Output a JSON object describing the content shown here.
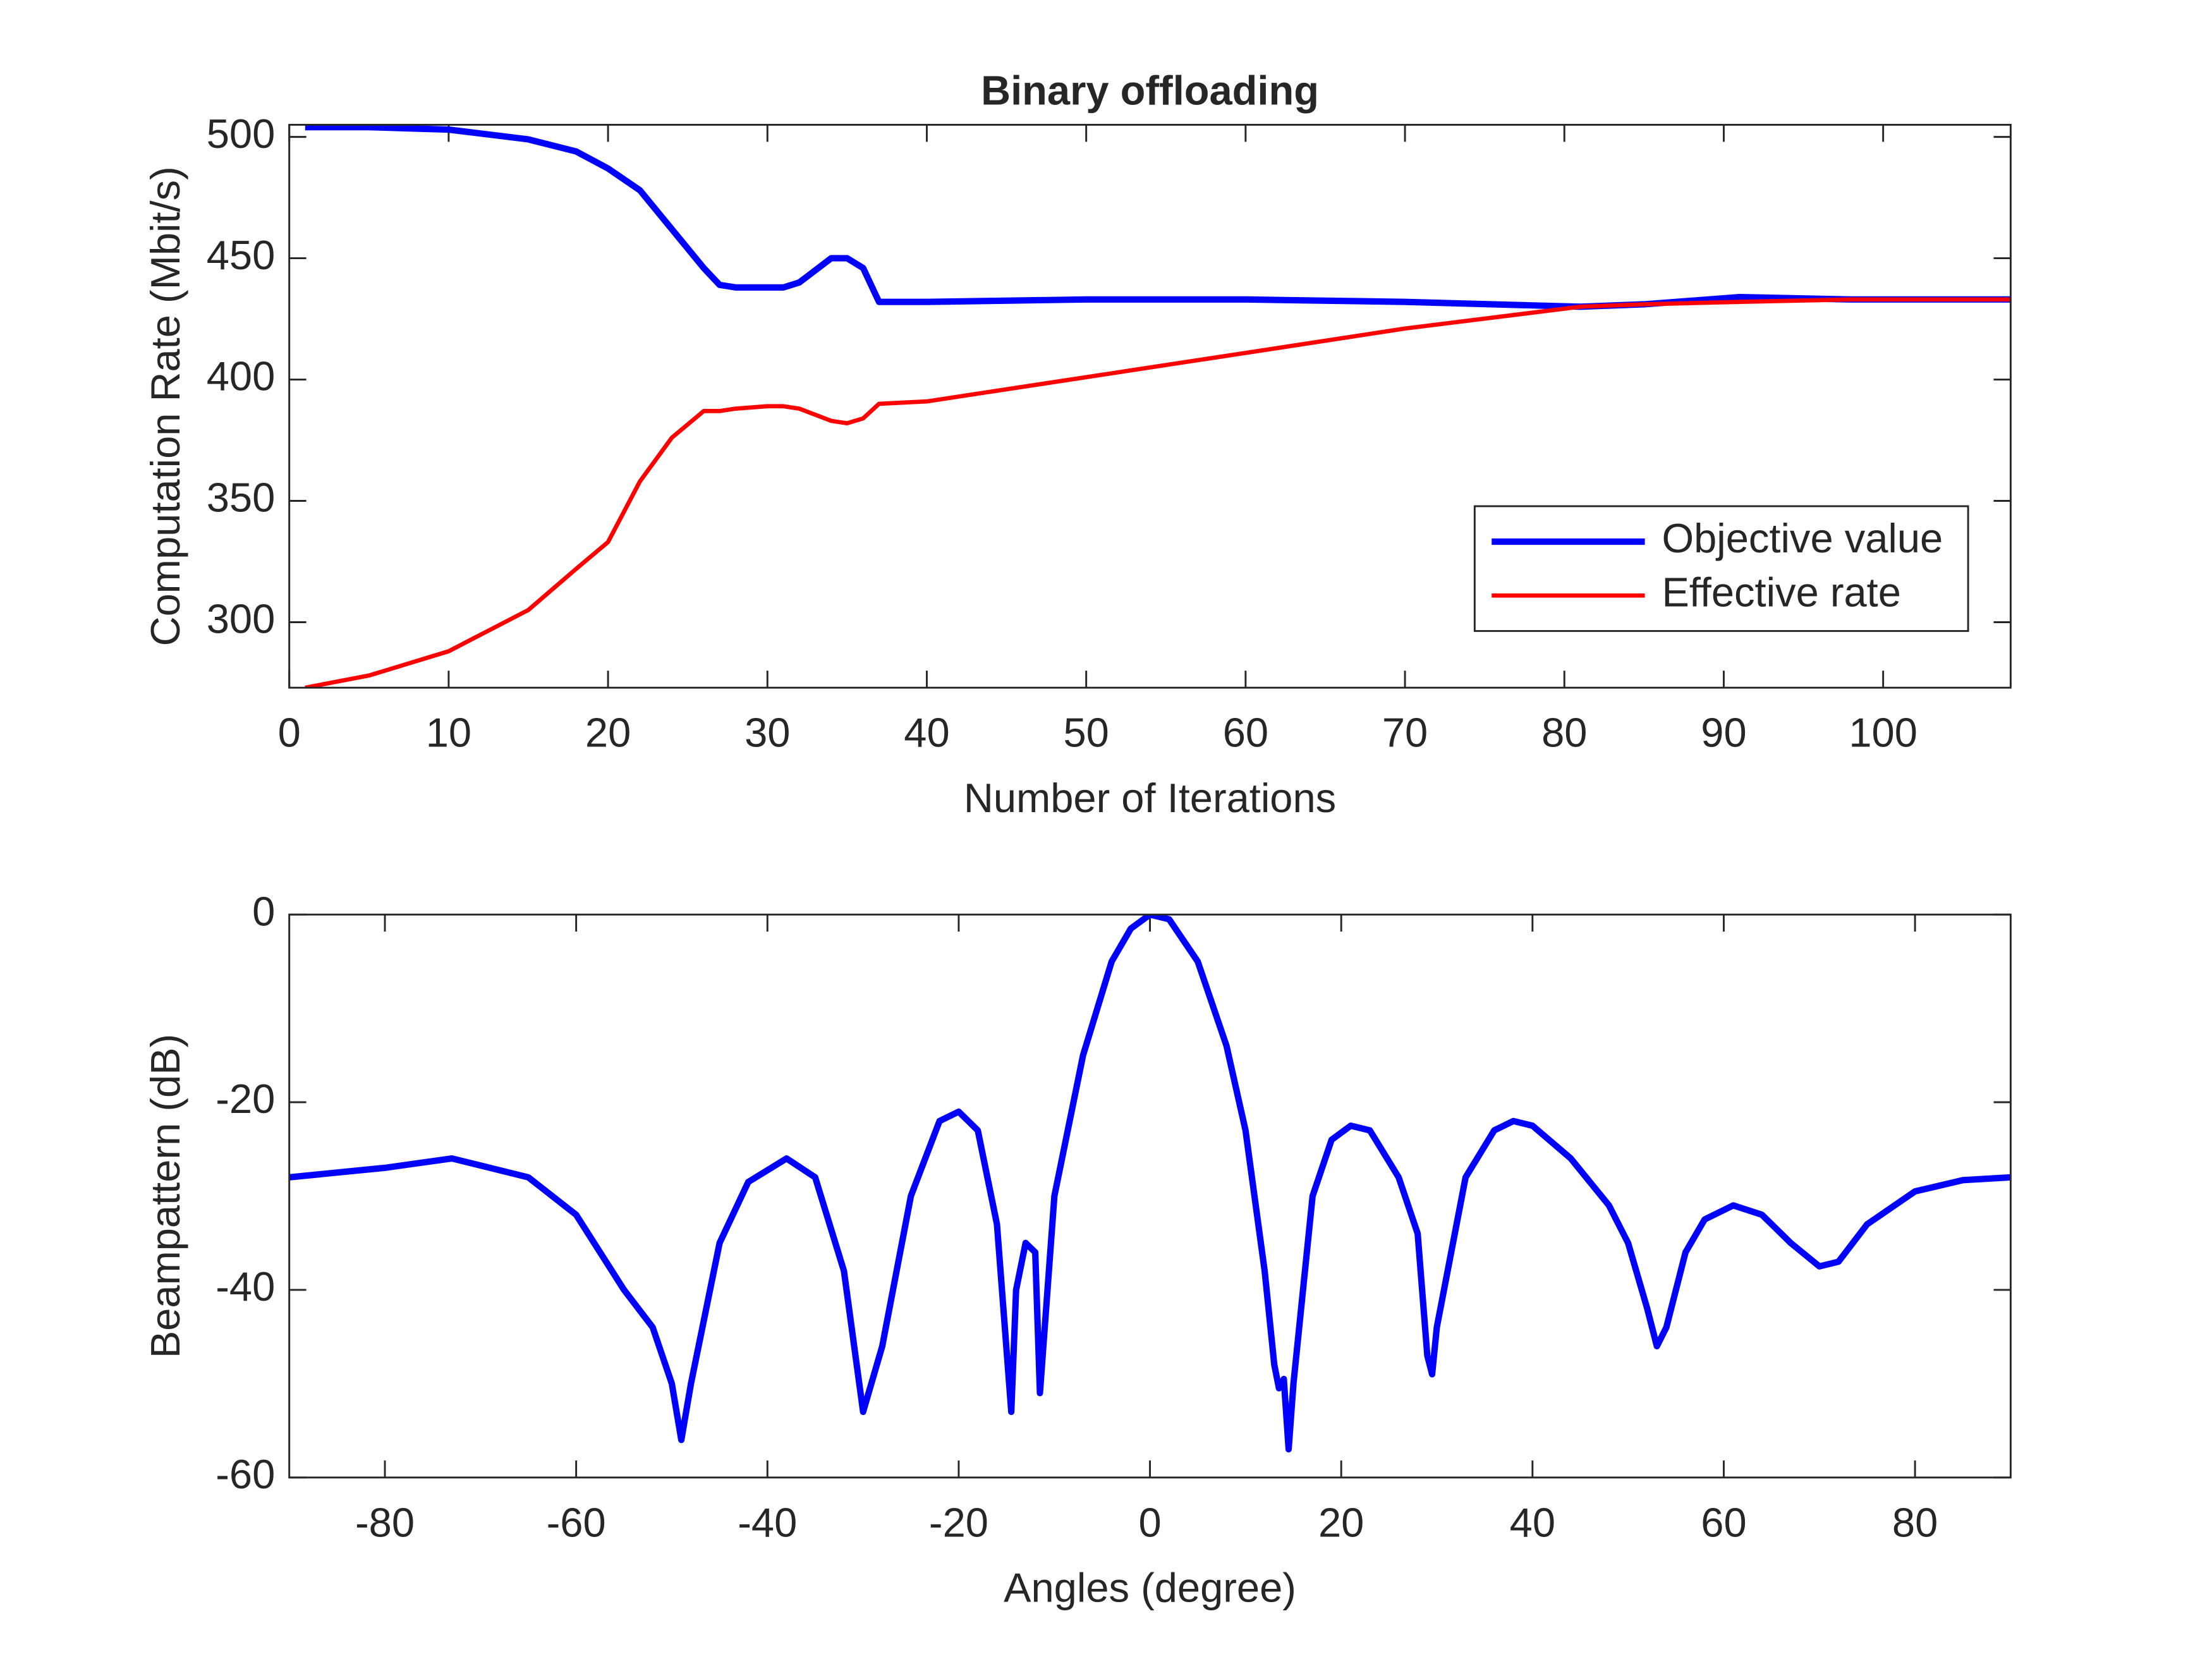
{
  "chart_data": [
    {
      "type": "line",
      "title": "Binary offloading",
      "xlabel": "Number of Iterations",
      "ylabel": "Computation Rate (Mbit/s)",
      "x": [
        1,
        5,
        10,
        15,
        18,
        20,
        22,
        24,
        26,
        27,
        28,
        30,
        31,
        32,
        34,
        35,
        36,
        37,
        40,
        50,
        60,
        70,
        81,
        85,
        91,
        98,
        100,
        108
      ],
      "series": [
        {
          "name": "Objective value",
          "color": "#0000ff",
          "line_width": 4.5,
          "values": [
            504,
            504,
            503,
            499,
            494,
            487,
            478,
            462,
            446,
            439,
            438,
            438,
            438,
            440,
            450,
            450,
            446,
            432,
            432,
            433,
            433,
            432,
            430,
            431,
            434,
            433,
            433,
            433
          ]
        },
        {
          "name": "Effective rate",
          "color": "#ff0000",
          "line_width": 3,
          "values": [
            273,
            278,
            288,
            305,
            322,
            333,
            358,
            376,
            387,
            387,
            388,
            389,
            389,
            388,
            383,
            382,
            384,
            390,
            391,
            401,
            411,
            421,
            430,
            431,
            432,
            433,
            433,
            433
          ]
        }
      ],
      "xlim": [
        0,
        108
      ],
      "ylim": [
        273,
        505
      ],
      "xticks": [
        0,
        10,
        20,
        30,
        40,
        50,
        60,
        70,
        80,
        90,
        100
      ],
      "yticks": [
        300,
        350,
        400,
        450,
        500
      ],
      "legend": "southeast",
      "grid": false
    },
    {
      "type": "line",
      "xlabel": "Angles (degree)",
      "ylabel": "Beampattern (dB)",
      "x": [
        -90,
        -80,
        -73,
        -65,
        -60,
        -55,
        -52,
        -50,
        -49,
        -48,
        -45,
        -42,
        -38,
        -35,
        -32,
        -30,
        -28,
        -25,
        -22,
        -20,
        -18,
        -16,
        -14.5,
        -14,
        -13,
        -12,
        -11.5,
        -10,
        -7,
        -4,
        -2,
        0,
        2,
        5,
        8,
        10,
        12,
        13,
        13.5,
        14,
        14.5,
        15,
        17,
        19,
        21,
        23,
        26,
        28,
        29,
        29.5,
        30,
        33,
        36,
        38,
        40,
        44,
        48,
        50,
        52,
        53,
        54,
        56,
        58,
        61,
        64,
        67,
        70,
        72,
        75,
        80,
        85,
        90
      ],
      "series": [
        {
          "color": "#0000ff",
          "line_width": 4.5,
          "values": [
            -28,
            -27,
            -26,
            -28,
            -32,
            -40,
            -44,
            -50,
            -56,
            -50,
            -35,
            -28.5,
            -26,
            -28,
            -38,
            -53,
            -46,
            -30,
            -22,
            -21,
            -23,
            -33,
            -53,
            -40,
            -35,
            -36,
            -51,
            -30,
            -15,
            -5,
            -1.5,
            0,
            -0.5,
            -5,
            -14,
            -23,
            -38,
            -48,
            -50.5,
            -49.5,
            -57,
            -50,
            -30,
            -24,
            -22.5,
            -23,
            -28,
            -34,
            -47,
            -49,
            -44,
            -28,
            -23,
            -22,
            -22.5,
            -26,
            -31,
            -35,
            -42,
            -46,
            -44,
            -36,
            -32.5,
            -31,
            -32,
            -35,
            -37.5,
            -37,
            -33,
            -29.5,
            -28.3,
            -28
          ]
        }
      ],
      "xlim": [
        -90,
        90
      ],
      "ylim": [
        -60,
        0
      ],
      "xticks": [
        -80,
        -60,
        -40,
        -20,
        0,
        20,
        40,
        60,
        80
      ],
      "yticks": [
        -60,
        -40,
        -20,
        0
      ],
      "grid": false
    }
  ]
}
